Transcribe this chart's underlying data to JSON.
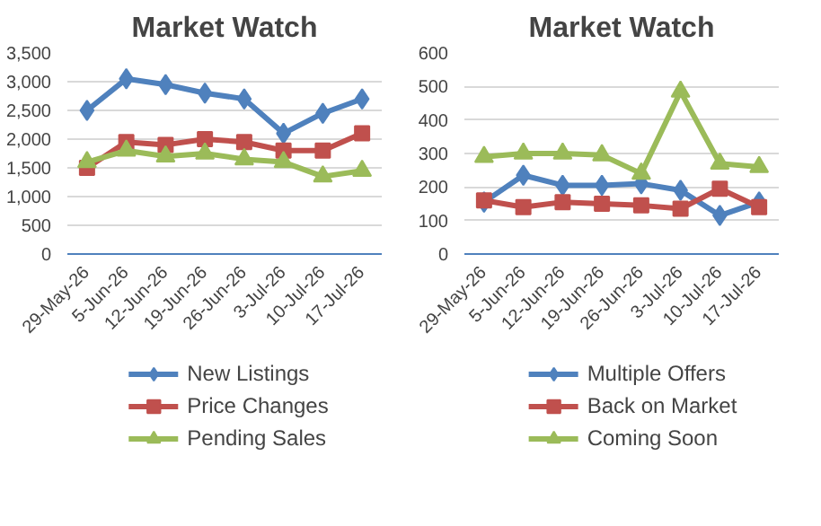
{
  "chart_data": [
    {
      "type": "line",
      "title": "Market Watch",
      "categories": [
        "29-May-26",
        "5-Jun-26",
        "12-Jun-26",
        "19-Jun-26",
        "26-Jun-26",
        "3-Jul-26",
        "10-Jul-26",
        "17-Jul-26"
      ],
      "series": [
        {
          "name": "New Listings",
          "color": "#4f81bd",
          "marker": "diamond",
          "values": [
            2500,
            3050,
            2950,
            2800,
            2700,
            2100,
            2450,
            2700
          ]
        },
        {
          "name": "Price Changes",
          "color": "#c0504d",
          "marker": "square",
          "values": [
            1500,
            1950,
            1900,
            2000,
            1950,
            1800,
            1800,
            2100
          ]
        },
        {
          "name": "Pending Sales",
          "color": "#9bbb59",
          "marker": "triangle",
          "values": [
            1600,
            1800,
            1700,
            1750,
            1650,
            1600,
            1350,
            1450
          ]
        }
      ],
      "ylim": [
        0,
        3500
      ],
      "yticks": [
        0,
        500,
        {
          "value": 1000,
          "label": "1,000"
        },
        {
          "value": 1500,
          "label": "1,500"
        },
        {
          "value": 2000,
          "label": "2,000"
        },
        {
          "value": 2500,
          "label": "2,500"
        },
        {
          "value": 3000,
          "label": "3,000"
        },
        {
          "value": 3500,
          "label": "3,500"
        }
      ],
      "grid": "y",
      "legend": "bottom",
      "line_style": "solid"
    },
    {
      "type": "line",
      "title": "Market Watch",
      "categories": [
        "29-May-26",
        "5-Jun-26",
        "12-Jun-26",
        "19-Jun-26",
        "26-Jun-26",
        "3-Jul-26",
        "10-Jul-26",
        "17-Jul-26"
      ],
      "series": [
        {
          "name": "Multiple Offers",
          "color": "#4f81bd",
          "marker": "diamond",
          "values": [
            155,
            235,
            205,
            205,
            210,
            190,
            115,
            155
          ]
        },
        {
          "name": "Back on Market",
          "color": "#c0504d",
          "marker": "square",
          "values": [
            160,
            140,
            155,
            150,
            145,
            135,
            195,
            140
          ]
        },
        {
          "name": "Coming Soon",
          "color": "#9bbb59",
          "marker": "triangle",
          "values": [
            290,
            300,
            300,
            295,
            240,
            485,
            270,
            260
          ]
        }
      ],
      "ylim": [
        0,
        600
      ],
      "yticks": [
        0,
        100,
        200,
        300,
        400,
        500,
        600
      ],
      "grid": "y",
      "legend": "bottom",
      "line_style": "solid"
    }
  ]
}
